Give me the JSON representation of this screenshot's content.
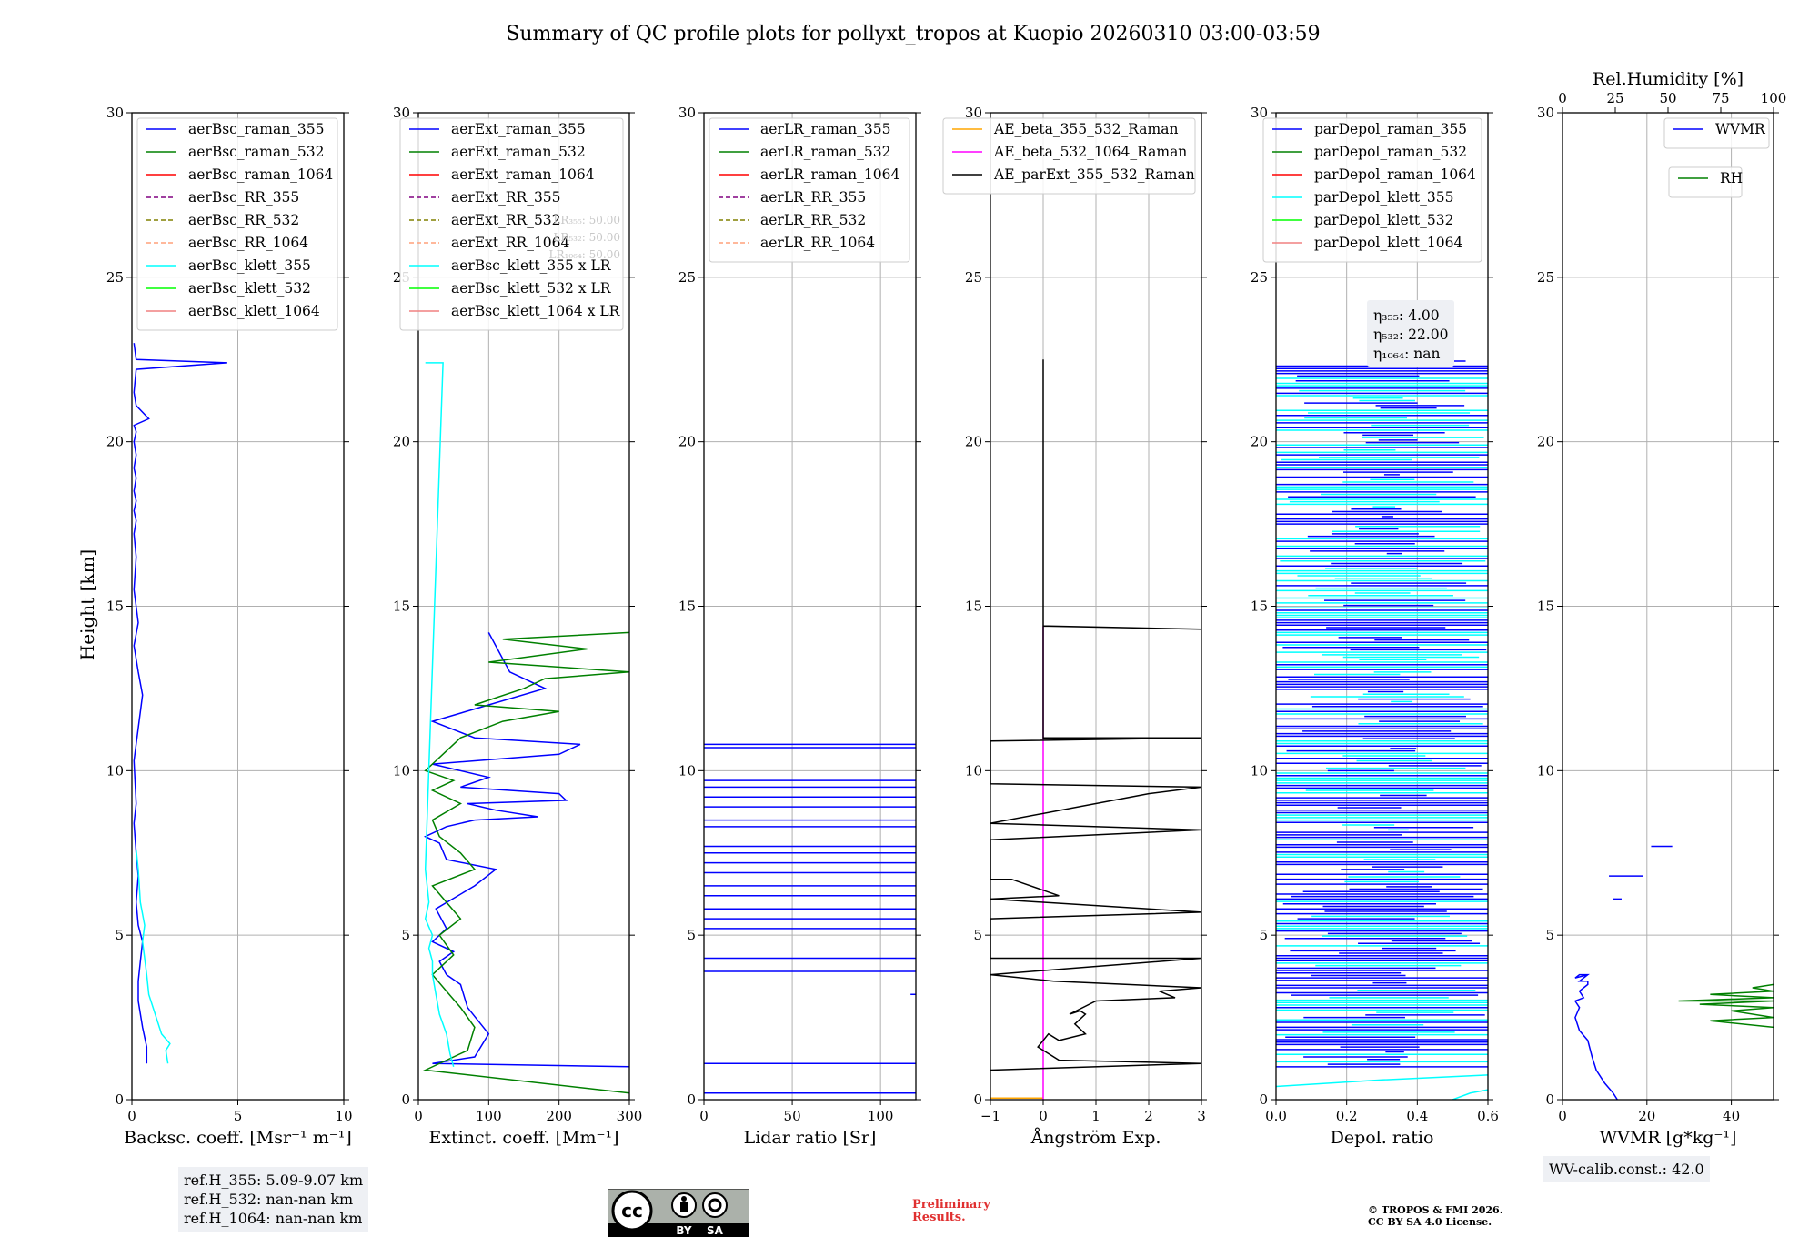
{
  "title": "Summary of QC profile plots for pollyxt_tropos at Kuopio 20260310 03:00-03:59",
  "ylabel": "Height [km]",
  "colors": {
    "blue": "#0000ff",
    "green": "#008000",
    "red": "#ff0000",
    "purple": "#800080",
    "olive": "#808000",
    "salmon": "#ffa07a",
    "cyan": "#00ffff",
    "lime": "#00ff00",
    "lightcoral": "#f08080",
    "orange": "#ffa500",
    "magenta": "#ff00ff",
    "black": "#000000"
  },
  "chart_data": [
    {
      "type": "line",
      "id": "bsc",
      "xlabel": "Backsc. coeff. [Msr⁻¹ m⁻¹]",
      "xlim": [
        0,
        10
      ],
      "ylim": [
        0,
        30
      ],
      "xticks": [
        0,
        5,
        10
      ],
      "yticks": [
        0,
        5,
        10,
        15,
        20,
        25,
        30
      ],
      "legend": [
        "aerBsc_raman_355",
        "aerBsc_raman_532",
        "aerBsc_raman_1064",
        "aerBsc_RR_355",
        "aerBsc_RR_532",
        "aerBsc_RR_1064",
        "aerBsc_klett_355",
        "aerBsc_klett_532",
        "aerBsc_klett_1064"
      ],
      "legend_styles": [
        [
          "blue",
          "solid"
        ],
        [
          "green",
          "solid"
        ],
        [
          "red",
          "solid"
        ],
        [
          "purple",
          "dashed"
        ],
        [
          "olive",
          "dashed"
        ],
        [
          "salmon",
          "dashed"
        ],
        [
          "cyan",
          "solid"
        ],
        [
          "lime",
          "solid"
        ],
        [
          "lightcoral",
          "solid"
        ]
      ],
      "legend_loc": "upper-right",
      "series": [
        {
          "name": "aerBsc_raman_355",
          "color": "blue",
          "x": [
            0.7,
            0.7,
            0.5,
            0.3,
            0.3,
            0.4,
            0.5,
            0.3,
            0.2,
            0.3,
            0.2,
            0.1,
            0.2,
            0.1,
            0.5,
            0.3,
            0.1,
            0.3,
            0.1,
            0.2,
            0.1,
            0.2,
            0.1,
            0.2,
            0.1,
            0.2,
            0.1,
            0.2,
            0.1,
            0.2,
            0.1,
            0.8,
            0.2,
            0.1,
            0.2,
            4.5,
            0.2,
            0.1
          ],
          "y": [
            1.1,
            1.6,
            2.2,
            3.0,
            3.6,
            4.2,
            4.8,
            5.3,
            6.0,
            6.8,
            7.5,
            8.4,
            9.0,
            10.3,
            12.3,
            13.0,
            13.8,
            14.5,
            15.5,
            16.5,
            17.2,
            17.6,
            17.9,
            18.2,
            18.5,
            18.9,
            19.2,
            19.6,
            20.0,
            20.3,
            20.5,
            20.7,
            21.1,
            21.5,
            22.2,
            22.4,
            22.5,
            23.0
          ]
        },
        {
          "name": "aerBsc_klett_355",
          "color": "cyan",
          "x": [
            1.7,
            1.6,
            1.8,
            1.4,
            1.1,
            0.8,
            0.7,
            0.6,
            0.5,
            0.6,
            0.4,
            0.3,
            0.2
          ],
          "y": [
            1.1,
            1.5,
            1.7,
            2.0,
            2.6,
            3.2,
            3.8,
            4.3,
            4.8,
            5.3,
            6.0,
            7.0,
            7.6
          ]
        }
      ]
    },
    {
      "type": "line",
      "id": "ext",
      "xlabel": "Extinct. coeff. [Mm⁻¹]",
      "xlim": [
        0,
        300
      ],
      "ylim": [
        0,
        30
      ],
      "xticks": [
        0,
        100,
        200,
        300
      ],
      "yticks": [
        0,
        5,
        10,
        15,
        20,
        25,
        30
      ],
      "legend": [
        "aerExt_raman_355",
        "aerExt_raman_532",
        "aerExt_raman_1064",
        "aerExt_RR_355",
        "aerExt_RR_532",
        "aerExt_RR_1064",
        "aerBsc_klett_355 x LR",
        "aerBsc_klett_532 x LR",
        "aerBsc_klett_1064 x LR"
      ],
      "legend_styles": [
        [
          "blue",
          "solid"
        ],
        [
          "green",
          "solid"
        ],
        [
          "red",
          "solid"
        ],
        [
          "purple",
          "dashed"
        ],
        [
          "olive",
          "dashed"
        ],
        [
          "salmon",
          "dashed"
        ],
        [
          "cyan",
          "solid"
        ],
        [
          "lime",
          "solid"
        ],
        [
          "lightcoral",
          "solid"
        ]
      ],
      "legend_loc": "upper-right",
      "hidden_labels": [
        "LR₃₅₅: 50.00",
        "LR₅₃₂: 50.00",
        "LR₁₀₆₄: 50.00"
      ],
      "series": [
        {
          "name": "aerExt_raman_355",
          "color": "blue",
          "x": [
            300,
            20,
            80,
            100,
            70,
            60,
            40,
            30,
            50,
            20,
            40,
            25,
            80,
            110,
            40,
            30,
            10,
            40,
            80,
            170,
            110,
            70,
            210,
            200,
            60,
            100,
            20,
            200,
            230,
            80,
            20,
            180,
            130,
            100
          ],
          "y": [
            1.0,
            1.1,
            1.3,
            2.0,
            2.8,
            3.5,
            3.8,
            4.2,
            4.5,
            4.8,
            5.2,
            5.8,
            6.5,
            7.0,
            7.3,
            7.8,
            8.0,
            8.3,
            8.5,
            8.6,
            8.8,
            9.0,
            9.1,
            9.3,
            9.5,
            9.8,
            10.2,
            10.5,
            10.8,
            11.0,
            11.5,
            12.5,
            13.0,
            14.2
          ]
        },
        {
          "name": "aerExt_raman_532",
          "color": "green",
          "x": [
            300,
            10,
            70,
            80,
            60,
            40,
            20,
            50,
            30,
            60,
            40,
            20,
            80,
            60,
            30,
            20,
            60,
            20,
            50,
            10,
            60,
            120,
            200,
            80,
            150,
            180,
            300,
            100,
            240,
            120,
            300
          ],
          "y": [
            0.2,
            0.9,
            1.5,
            2.2,
            2.8,
            3.3,
            3.8,
            4.4,
            5.0,
            5.5,
            6.0,
            6.5,
            7.0,
            7.5,
            8.0,
            8.5,
            9.0,
            9.4,
            9.7,
            10.0,
            11.0,
            11.5,
            11.8,
            12.0,
            12.5,
            12.8,
            13.0,
            13.3,
            13.7,
            14.0,
            14.2
          ]
        },
        {
          "name": "aerBsc_klett_355 x LR",
          "color": "cyan",
          "x": [
            50,
            45,
            40,
            30,
            25,
            20,
            20,
            15,
            20,
            10,
            15,
            10,
            35,
            10
          ],
          "y": [
            1.0,
            1.4,
            2.0,
            2.6,
            3.2,
            3.8,
            4.2,
            4.6,
            5.0,
            5.5,
            6.0,
            7.0,
            22.4,
            22.4
          ]
        }
      ]
    },
    {
      "type": "line",
      "id": "lr",
      "xlabel": "Lidar ratio [Sr]",
      "xlim": [
        0,
        120
      ],
      "ylim": [
        0,
        30
      ],
      "xticks": [
        0,
        50,
        100
      ],
      "yticks": [
        0,
        5,
        10,
        15,
        20,
        25,
        30
      ],
      "legend": [
        "aerLR_raman_355",
        "aerLR_raman_532",
        "aerLR_raman_1064",
        "aerLR_RR_355",
        "aerLR_RR_532",
        "aerLR_RR_1064"
      ],
      "legend_styles": [
        [
          "blue",
          "solid"
        ],
        [
          "green",
          "solid"
        ],
        [
          "red",
          "solid"
        ],
        [
          "purple",
          "dashed"
        ],
        [
          "olive",
          "dashed"
        ],
        [
          "salmon",
          "dashed"
        ]
      ],
      "legend_loc": "upper-right",
      "hlines": {
        "color": "blue",
        "y": [
          0.2,
          1.1,
          3.9,
          4.3,
          5.2,
          5.5,
          5.8,
          6.2,
          6.5,
          6.9,
          7.2,
          7.5,
          7.7,
          8.3,
          8.5,
          8.9,
          9.2,
          9.5,
          9.7,
          10.7,
          10.8
        ]
      }
    },
    {
      "type": "line",
      "id": "ae",
      "xlabel": "Ångström Exp.",
      "xlim": [
        -1,
        3
      ],
      "ylim": [
        0,
        30
      ],
      "xticks": [
        -1,
        0,
        1,
        2,
        3
      ],
      "yticks": [
        0,
        5,
        10,
        15,
        20,
        25,
        30
      ],
      "legend": [
        "AE_beta_355_532_Raman",
        "AE_beta_532_1064_Raman",
        "AE_parExt_355_532_Raman"
      ],
      "legend_styles": [
        [
          "orange",
          "solid"
        ],
        [
          "magenta",
          "solid"
        ],
        [
          "black",
          "solid"
        ]
      ],
      "legend_loc": "upper-right",
      "series": [
        {
          "name": "AE_beta_355_532_Raman",
          "color": "orange",
          "x": [
            -1,
            0
          ],
          "y": [
            0.05,
            0.05
          ]
        },
        {
          "name": "AE_beta_532_1064_Raman",
          "color": "magenta",
          "x": [
            0,
            0
          ],
          "y": [
            0,
            14.4
          ]
        },
        {
          "name": "AE_parExt_355_532_Raman",
          "color": "black",
          "x": [
            -1,
            3,
            0.3,
            -0.1,
            0.1,
            0.3,
            0.8,
            0.6,
            0.8,
            0.7,
            0.5,
            1.0,
            2.5,
            2.2,
            3.0,
            0.2,
            -1,
            3,
            -1,
            -1,
            3,
            -1,
            0.3,
            -0.6,
            -1,
            -1,
            3,
            -1,
            2.0,
            3,
            -1,
            -1,
            3,
            0,
            0,
            3,
            0,
            0
          ],
          "y": [
            0.9,
            1.1,
            1.2,
            1.6,
            2.0,
            1.8,
            2.0,
            2.3,
            2.6,
            2.7,
            2.6,
            3.0,
            3.1,
            3.3,
            3.4,
            3.6,
            3.8,
            4.3,
            4.3,
            5.5,
            5.7,
            6.1,
            6.2,
            6.7,
            6.7,
            7.9,
            8.2,
            8.4,
            9.3,
            9.5,
            9.6,
            10.9,
            11.0,
            11.0,
            14.4,
            14.3,
            14.4,
            22.5
          ]
        }
      ]
    },
    {
      "type": "line",
      "id": "depol",
      "xlabel": "Depol. ratio",
      "xlim": [
        0,
        0.6
      ],
      "ylim": [
        0,
        30
      ],
      "xticks": [
        0.0,
        0.2,
        0.4,
        0.6
      ],
      "yticks": [
        0,
        5,
        10,
        15,
        20,
        25,
        30
      ],
      "legend": [
        "parDepol_raman_355",
        "parDepol_raman_532",
        "parDepol_raman_1064",
        "parDepol_klett_355",
        "parDepol_klett_532",
        "parDepol_klett_1064"
      ],
      "legend_styles": [
        [
          "blue",
          "solid"
        ],
        [
          "green",
          "solid"
        ],
        [
          "red",
          "solid"
        ],
        [
          "cyan",
          "solid"
        ],
        [
          "lime",
          "solid"
        ],
        [
          "lightcoral",
          "solid"
        ]
      ],
      "legend_loc": "upper-right",
      "annotation": [
        "η₃₅₅: 4.00",
        "η₅₃₂: 22.00",
        "η₁₀₆₄: nan"
      ],
      "band_range": [
        1.0,
        22.5
      ]
    },
    {
      "type": "line",
      "id": "wv",
      "xlabel": "WVMR [g*kg⁻¹]",
      "xlim": [
        0,
        50
      ],
      "ylim": [
        0,
        30
      ],
      "xticks": [
        0,
        20,
        40
      ],
      "yticks": [
        0,
        5,
        10,
        15,
        20,
        25,
        30
      ],
      "top_xlabel": "Rel.Humidity [%]",
      "top_xlim": [
        0,
        100
      ],
      "top_xticks": [
        0,
        25,
        50,
        75,
        100
      ],
      "legend": [
        "WVMR"
      ],
      "legend2": [
        "RH"
      ],
      "series": [
        {
          "name": "WVMR",
          "color": "blue",
          "x": [
            13,
            12,
            10,
            8,
            7,
            6,
            4,
            3,
            4,
            3,
            5,
            4,
            5,
            6,
            6,
            4,
            5,
            6,
            4,
            3,
            6
          ],
          "y": [
            0.0,
            0.2,
            0.5,
            0.9,
            1.3,
            1.8,
            2.1,
            2.5,
            2.8,
            3.0,
            3.1,
            3.3,
            3.4,
            3.5,
            3.6,
            3.6,
            3.7,
            3.8,
            3.8,
            3.7,
            3.8
          ]
        },
        {
          "name": "RH",
          "color": "green",
          "x": [
            100,
            70,
            100,
            80,
            100,
            65,
            100,
            55,
            100,
            70,
            100,
            90,
            100
          ],
          "y": [
            2.2,
            2.4,
            2.5,
            2.7,
            2.8,
            2.9,
            3.0,
            3.0,
            3.1,
            3.2,
            3.3,
            3.4,
            3.5
          ]
        },
        {
          "name": "WVMR_upper",
          "color": "blue",
          "segments": [
            [
              [
                11,
                6.8
              ],
              [
                19,
                6.8
              ]
            ],
            [
              [
                12,
                6.1
              ],
              [
                14,
                6.1
              ]
            ],
            [
              [
                21,
                7.7
              ],
              [
                26,
                7.7
              ]
            ]
          ]
        }
      ]
    }
  ],
  "info_refH": "ref.H_355: 5.09-9.07 km\nref.H_532: nan-nan km\nref.H_1064: nan-nan km",
  "info_wvcalib": "WV-calib.const.: 42.0",
  "preliminary": "Preliminary\nResults.",
  "copyright": "© TROPOS & FMI 2026.\nCC BY SA 4.0 License.",
  "cc_by": "BY",
  "cc_sa": "SA"
}
